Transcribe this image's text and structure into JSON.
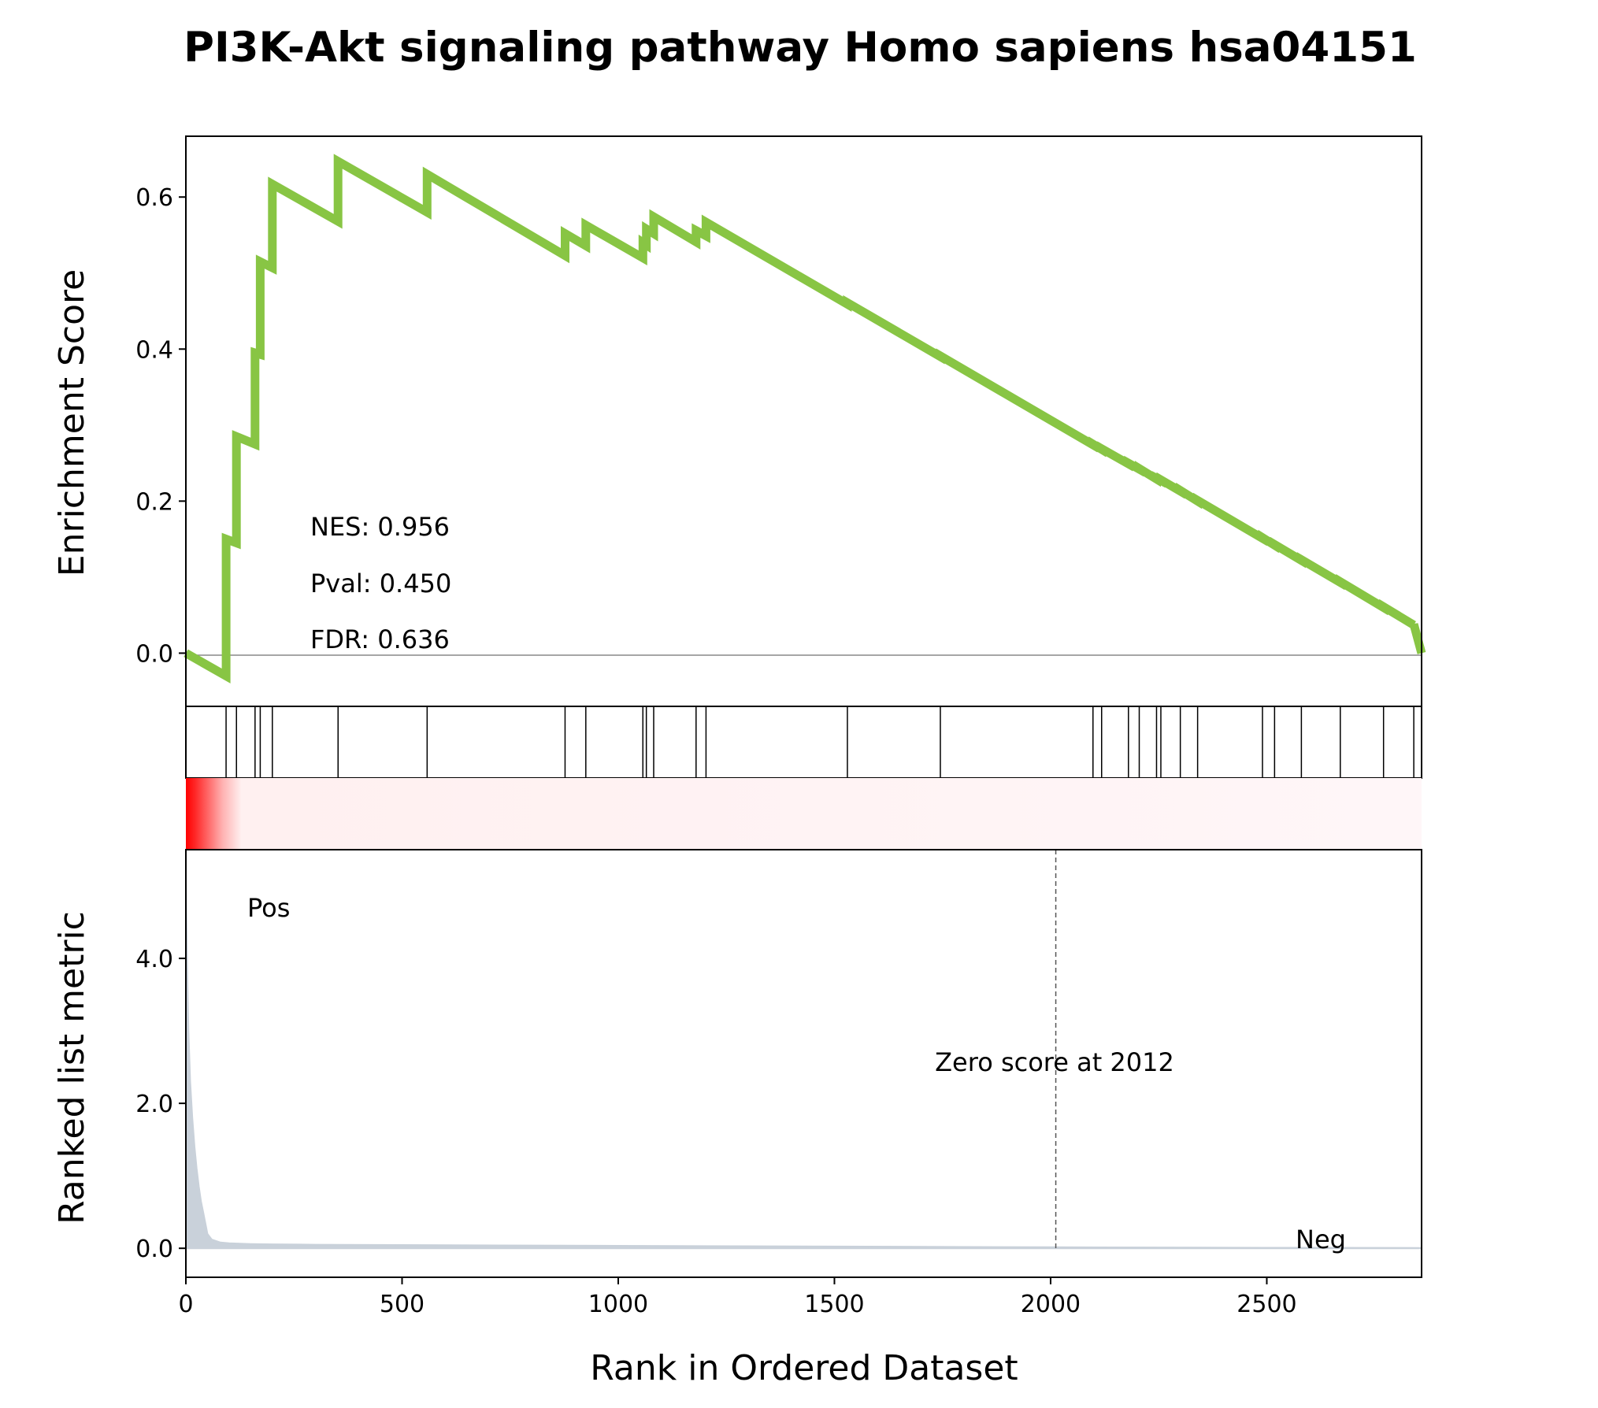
{
  "chart_data": {
    "type": "line",
    "title": "PI3K-Akt signaling pathway Homo sapiens hsa04151",
    "xlabel": "Rank in Ordered Dataset",
    "xlim": [
      0,
      2858
    ],
    "x_ticks": [
      0,
      500,
      1000,
      1500,
      2000,
      2500
    ],
    "enrichment_panel": {
      "ylabel": "Enrichment Score",
      "ylim": [
        -0.07,
        0.68
      ],
      "y_ticks": [
        0.0,
        0.2,
        0.4,
        0.6
      ],
      "y_tick_labels": [
        "0.0",
        "0.2",
        "0.4",
        "0.6"
      ],
      "line_color": "#88c544",
      "series": [
        {
          "x": [
            0,
            93,
            93,
            117,
            117,
            160,
            160,
            172,
            172,
            200,
            200,
            352,
            352,
            558,
            558,
            877,
            877,
            925,
            925,
            1057,
            1057,
            1065,
            1065,
            1082,
            1082,
            1180,
            1180,
            1203,
            1203,
            1530,
            1530,
            1745,
            1745,
            2098,
            2098,
            2118,
            2118,
            2180,
            2180,
            2205,
            2205,
            2245,
            2245,
            2255,
            2255,
            2300,
            2300,
            2340,
            2340,
            2490,
            2490,
            2518,
            2518,
            2580,
            2580,
            2670,
            2670,
            2770,
            2770,
            2840,
            2840,
            2858
          ],
          "y": [
            0.0,
            -0.03,
            0.15,
            0.145,
            0.285,
            0.275,
            0.395,
            0.393,
            0.515,
            0.507,
            0.617,
            0.568,
            0.647,
            0.58,
            0.63,
            0.523,
            0.552,
            0.536,
            0.563,
            0.52,
            0.54,
            0.537,
            0.558,
            0.552,
            0.574,
            0.541,
            0.556,
            0.549,
            0.567,
            0.459,
            0.461,
            0.39,
            0.391,
            0.274,
            0.275,
            0.268,
            0.269,
            0.249,
            0.25,
            0.242,
            0.243,
            0.229,
            0.23,
            0.227,
            0.228,
            0.213,
            0.214,
            0.2,
            0.201,
            0.151,
            0.152,
            0.142,
            0.143,
            0.122,
            0.123,
            0.093,
            0.094,
            0.06,
            0.061,
            0.037,
            0.038,
            0.0
          ]
        }
      ],
      "annotations": {
        "nes": "NES: 0.956",
        "pval": "Pval: 0.450",
        "fdr": "FDR: 0.636"
      }
    },
    "hits_panel": {
      "hit_ranks": [
        93,
        117,
        160,
        172,
        200,
        352,
        558,
        877,
        925,
        1057,
        1065,
        1082,
        1180,
        1203,
        1530,
        1745,
        2098,
        2118,
        2180,
        2205,
        2245,
        2255,
        2300,
        2340,
        2490,
        2518,
        2580,
        2670,
        2770,
        2840
      ]
    },
    "ranked_metric_panel": {
      "ylabel": "Ranked list metric",
      "ylim": [
        -0.4,
        5.5
      ],
      "y_ticks": [
        0.0,
        2.0,
        4.0
      ],
      "y_tick_labels": [
        "0.0",
        "2.0",
        "4.0"
      ],
      "fill_color": "#c9d1da",
      "series": [
        {
          "x": [
            0,
            3,
            6,
            10,
            15,
            20,
            25,
            30,
            35,
            40,
            45,
            50,
            60,
            80,
            100,
            150,
            200,
            300,
            500,
            1000,
            1500,
            2000,
            2500,
            2858
          ],
          "y": [
            5.1,
            3.9,
            3.0,
            2.3,
            1.8,
            1.4,
            1.1,
            0.85,
            0.65,
            0.5,
            0.35,
            0.2,
            0.12,
            0.08,
            0.07,
            0.06,
            0.055,
            0.05,
            0.045,
            0.035,
            0.025,
            0.015,
            0.008,
            0.005
          ]
        }
      ],
      "zero_score_rank": 2012,
      "zero_score_label": "Zero score at 2012",
      "pos_label": "Pos",
      "neg_label": "Neg",
      "pos_color": "#ff0000",
      "neg_color": "#0000ff"
    }
  }
}
